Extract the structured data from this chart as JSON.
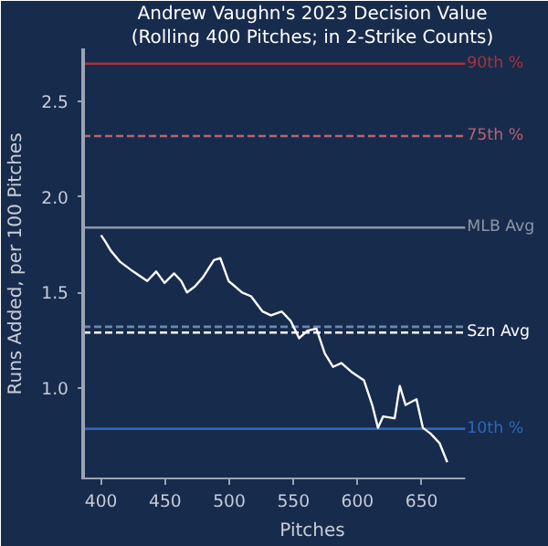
{
  "chart_data": {
    "type": "line",
    "title": "Andrew Vaughn's 2023 Decision Value",
    "subtitle": "(Rolling 400 Pitches; in 2-Strike Counts)",
    "xlabel": "Pitches",
    "ylabel": "Runs Added, per 100 Pitches",
    "x": [
      400,
      403,
      407.5,
      415,
      425,
      436,
      443,
      449.5,
      457,
      462.5,
      467,
      473,
      479.5,
      488,
      493,
      499.5,
      510,
      517,
      526,
      532.5,
      541,
      548,
      554.5,
      561,
      568,
      574.5,
      581,
      587.5,
      596,
      605,
      611.5,
      616,
      620,
      629,
      633,
      637.5,
      646,
      651,
      657,
      664,
      670
    ],
    "series": [
      {
        "color": "#ffffff",
        "values": [
          1.8,
          1.77,
          1.72,
          1.66,
          1.61,
          1.56,
          1.61,
          1.55,
          1.6,
          1.56,
          1.5,
          1.53,
          1.58,
          1.67,
          1.68,
          1.56,
          1.5,
          1.48,
          1.4,
          1.38,
          1.4,
          1.35,
          1.26,
          1.3,
          1.31,
          1.18,
          1.11,
          1.13,
          1.08,
          1.04,
          0.91,
          0.79,
          0.85,
          0.84,
          1.01,
          0.91,
          0.94,
          0.79,
          0.76,
          0.71,
          0.61
        ]
      }
    ],
    "xlim": [
      386,
      684
    ],
    "ylim": [
      0.52,
      2.78
    ],
    "xticks": [
      400,
      450,
      500,
      550,
      600,
      650
    ],
    "yticks": [
      {
        "value": 1.0,
        "label": "1.0"
      },
      {
        "value": 1.5,
        "label": "1.5"
      },
      {
        "value": 2.0,
        "label": "2.0"
      },
      {
        "value": 2.5,
        "label": "2.5"
      }
    ],
    "ref_lines": [
      {
        "axis": "y",
        "value": 2.7,
        "label": "90th %",
        "color": "#a8323e",
        "line_style": "solid"
      },
      {
        "axis": "y",
        "value": 2.32,
        "label": "75th %",
        "color": "#b8646c",
        "line_style": "dashed"
      },
      {
        "axis": "y",
        "value": 1.84,
        "label": "MLB Avg",
        "color": "#8e97a8",
        "line_style": "solid"
      },
      {
        "axis": "y",
        "value": 1.32,
        "label": null,
        "color": "#6f86b0",
        "line_style": "dashed"
      },
      {
        "axis": "y",
        "value": 1.29,
        "label": "Szn Avg",
        "color": "#ffffff",
        "line_style": "dashed"
      },
      {
        "axis": "y",
        "value": 0.785,
        "label": "10th %",
        "color": "#2f67b5",
        "line_style": "solid"
      }
    ],
    "grid": false,
    "marker": "none",
    "line_style": "solid"
  }
}
